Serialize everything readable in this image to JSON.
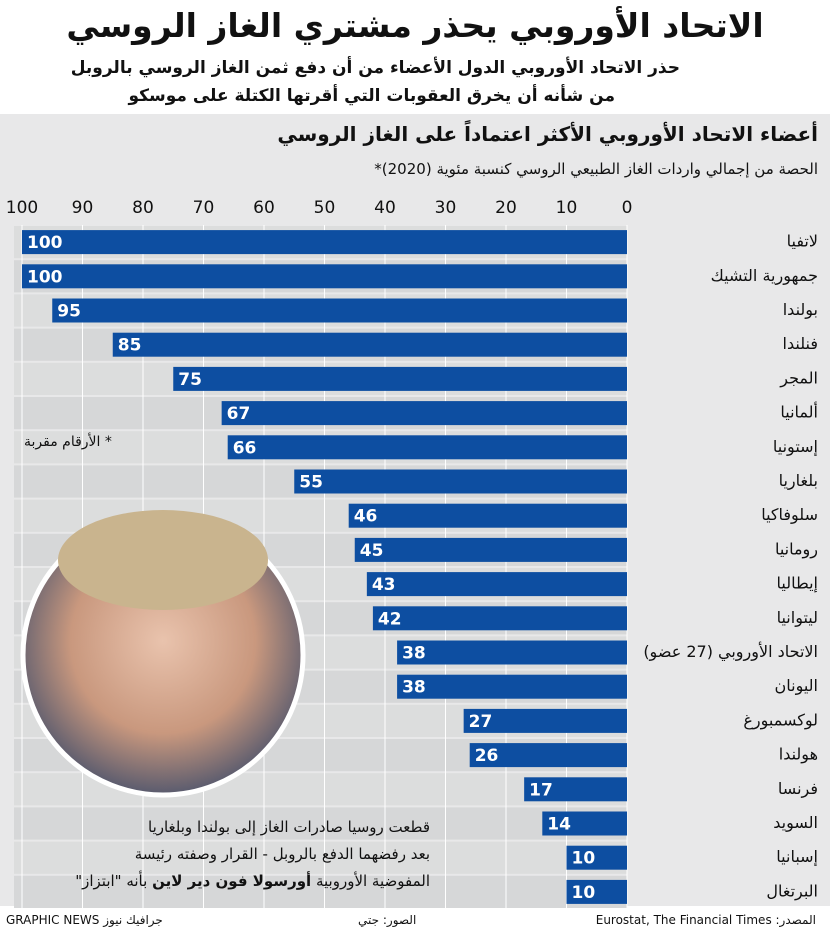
{
  "chart_data": {
    "type": "bar",
    "orientation": "horizontal",
    "title": "الاتحاد الأوروبي يحذر مشتري الغاز الروسي",
    "subtitle": [
      "حذر الاتحاد الأوروبي الدول الأعضاء من أن دفع ثمن الغاز الروسي بالروبل",
      "من شأنه أن يخرق العقوبات التي أقرتها الكتلة على موسكو"
    ],
    "chart_title": "أعضاء الاتحاد الأوروبي الأكثر اعتماداً على الغاز الروسي",
    "chart_subtitle": "الحصة من إجمالي واردات الغاز الطبيعي الروسي كنسبة مئوية (2020)*",
    "categories": [
      "لاتفيا",
      "جمهورية التشيك",
      "بولندا",
      "فنلندا",
      "المجر",
      "ألمانيا",
      "إستونيا",
      "بلغاريا",
      "سلوفاكيا",
      "رومانيا",
      "إيطاليا",
      "ليتوانيا",
      "الاتحاد الأوروبي (27 عضو)",
      "اليونان",
      "لوكسمبورغ",
      "هولندا",
      "فرنسا",
      "السويد",
      "إسبانيا",
      "البرتغال"
    ],
    "values": [
      100,
      100,
      95,
      85,
      75,
      67,
      66,
      55,
      46,
      45,
      43,
      42,
      38,
      38,
      27,
      26,
      17,
      14,
      10,
      10
    ],
    "color": "#0d4ea1",
    "xlim": [
      0,
      100
    ],
    "xticks": [
      0,
      10,
      20,
      30,
      40,
      50,
      60,
      70,
      80,
      90,
      100
    ],
    "grid": true,
    "note": "* الأرقام مقربة",
    "annotation": [
      "قطعت روسيا صادرات الغاز إلى بولندا وبلغاريا",
      "بعد رفضهما الدفع بالروبل - القرار وصفته رئيسة",
      [
        "المفوضية الأوروبية",
        "أورسولا فون دير لاين",
        "بأنه \"ابتزاز\""
      ]
    ],
    "source": "المصدر: Eurostat, The Financial Times",
    "photo_credit": "الصور: جتي",
    "brand": "GRAPHIC NEWS جرافيك نيوز"
  }
}
